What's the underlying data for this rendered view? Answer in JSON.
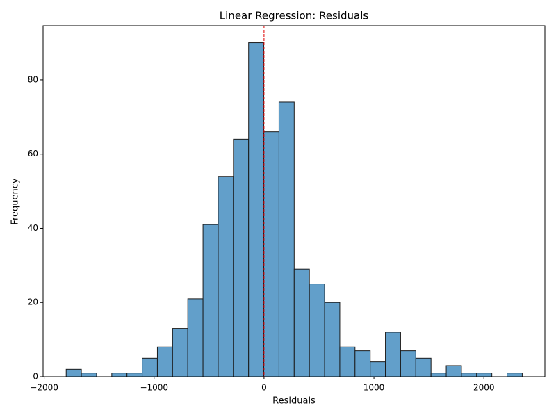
{
  "chart_data": {
    "type": "histogram",
    "title": "Linear Regression: Residuals",
    "x_label": "Residuals",
    "y_label": "Frequency",
    "bins": [
      -1800,
      -1661.7,
      -1523.4,
      -1385.1,
      -1246.8,
      -1108.5,
      -970.2,
      -831.9,
      -693.6,
      -555.3,
      -417,
      -278.7,
      -140.4,
      -2.1,
      136.2,
      274.5,
      412.8,
      551.1,
      689.4,
      827.7,
      966,
      1104.3,
      1242.6,
      1380.9,
      1519.2,
      1657.5,
      1795.8,
      1934.1,
      2072.4,
      2210.7,
      2349
    ],
    "counts": [
      2,
      1,
      0,
      1,
      1,
      5,
      8,
      13,
      21,
      41,
      54,
      64,
      90,
      66,
      74,
      29,
      25,
      20,
      8,
      7,
      4,
      12,
      7,
      5,
      1,
      3,
      1,
      1,
      0,
      1
    ],
    "color": "#629fca",
    "edgecolor": "#1a1a1a",
    "xlim": [
      -2010,
      2555
    ],
    "ylim": [
      0,
      94.6
    ],
    "xticks": [
      {
        "value": -2000,
        "label": "−2000"
      },
      {
        "value": -1000,
        "label": "−1000"
      },
      0,
      1000,
      2000
    ],
    "yticks": [
      0,
      20,
      40,
      60,
      80
    ],
    "reference_line": {
      "x": 0,
      "color": "#e00000"
    }
  }
}
